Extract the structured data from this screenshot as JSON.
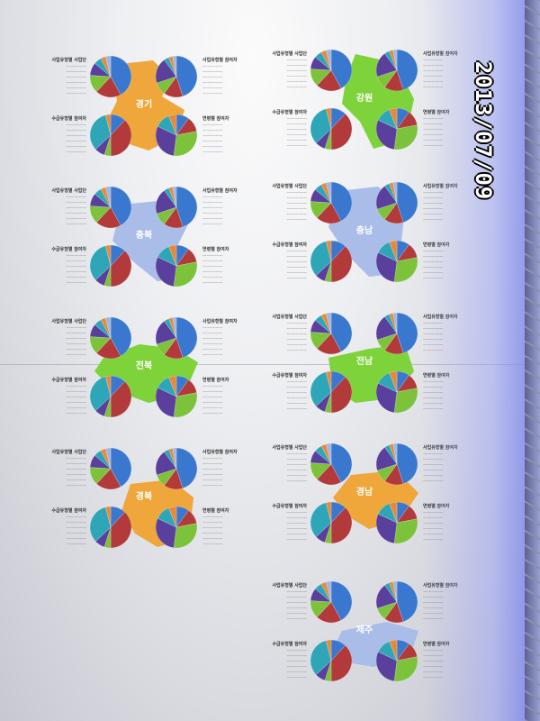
{
  "date_stamp": "2013/07/09",
  "section_labels": {
    "business_type_orgs": "사업유형별 사업단",
    "business_type_participants": "사업유형별 참여자",
    "benefit_type_participants": "수급유형별 참여자",
    "age_participants": "연령별 참여자"
  },
  "pie_colors": [
    "#3a78d0",
    "#b23a3a",
    "#7cc23a",
    "#5a3f9c",
    "#2fa6b8",
    "#e8893a",
    "#9fb6e0"
  ],
  "pie_slices": {
    "business_type_orgs": [
      42,
      20,
      14,
      10,
      6,
      4,
      4
    ],
    "business_type_participants": [
      45,
      15,
      10,
      20,
      4,
      3,
      3
    ],
    "benefit_type_participants": [
      12,
      38,
      5,
      8,
      33,
      4
    ],
    "age_participants": [
      10,
      12,
      30,
      30,
      12,
      6
    ]
  },
  "regions": [
    {
      "name": "경기",
      "color": "#efa63a"
    },
    {
      "name": "강원",
      "color": "#7ed23a"
    },
    {
      "name": "충북",
      "color": "#a9bde8"
    },
    {
      "name": "충남",
      "color": "#a9bde8"
    },
    {
      "name": "전북",
      "color": "#7ed23a"
    },
    {
      "name": "전남",
      "color": "#7ed23a"
    },
    {
      "name": "경북",
      "color": "#efa63a"
    },
    {
      "name": "경남",
      "color": "#efa63a"
    },
    {
      "name": "제주",
      "color": "#a9bde8"
    }
  ]
}
